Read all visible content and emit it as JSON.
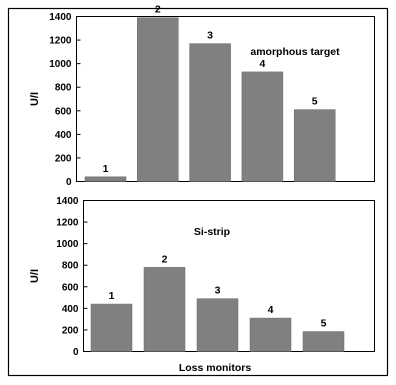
{
  "chart_data": [
    {
      "type": "bar",
      "annotation": "amorphous target",
      "ylabel": "U/I",
      "xlabel": "",
      "categories": [
        "1",
        "2",
        "3",
        "4",
        "5"
      ],
      "values": [
        40,
        1390,
        1170,
        930,
        610
      ],
      "ylim": [
        0,
        1400
      ],
      "yticks": [
        "0",
        "200",
        "400",
        "600",
        "800",
        "1000",
        "1200",
        "1400"
      ],
      "grid": false,
      "bar_color": "#808080"
    },
    {
      "type": "bar",
      "annotation": "Si-strip",
      "ylabel": "U/I",
      "xlabel": "Loss monitors",
      "categories": [
        "1",
        "2",
        "3",
        "4",
        "5"
      ],
      "values": [
        440,
        780,
        490,
        310,
        185
      ],
      "ylim": [
        0,
        1400
      ],
      "yticks": [
        "0",
        "200",
        "400",
        "600",
        "800",
        "1000",
        "1200",
        "1400"
      ],
      "grid": false,
      "bar_color": "#808080"
    }
  ]
}
